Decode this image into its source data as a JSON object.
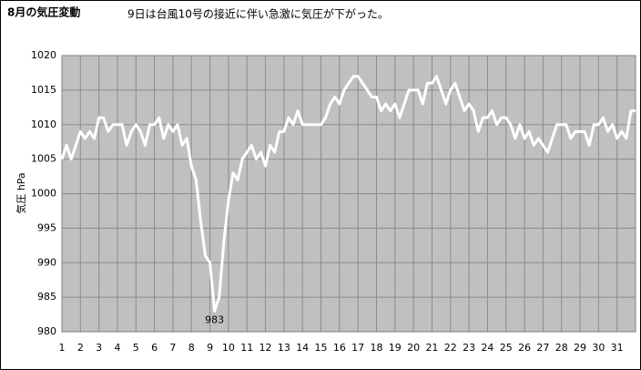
{
  "chart_data": {
    "type": "line",
    "title": "8月の気圧変動",
    "subtitle": "9日は台風10号の接近に伴い急激に気圧が下がった。",
    "y_label": "気圧 hPa",
    "annotation": "983",
    "x": [
      1,
      1.25,
      1.5,
      1.75,
      2,
      2.25,
      2.5,
      2.75,
      3,
      3.25,
      3.5,
      3.75,
      4,
      4.25,
      4.5,
      4.75,
      5,
      5.25,
      5.5,
      5.75,
      6,
      6.25,
      6.5,
      6.75,
      7,
      7.25,
      7.5,
      7.75,
      8,
      8.25,
      8.5,
      8.75,
      9,
      9.25,
      9.5,
      9.75,
      10,
      10.25,
      10.5,
      10.75,
      11,
      11.25,
      11.5,
      11.75,
      12,
      12.25,
      12.5,
      12.75,
      13,
      13.25,
      13.5,
      13.75,
      14,
      14.25,
      14.5,
      14.75,
      15,
      15.25,
      15.5,
      15.75,
      16,
      16.25,
      16.5,
      16.75,
      17,
      17.25,
      17.5,
      17.75,
      18,
      18.25,
      18.5,
      18.75,
      19,
      19.25,
      19.5,
      19.75,
      20,
      20.25,
      20.5,
      20.75,
      21,
      21.25,
      21.5,
      21.75,
      22,
      22.25,
      22.5,
      22.75,
      23,
      23.25,
      23.5,
      23.75,
      24,
      24.25,
      24.5,
      24.75,
      25,
      25.25,
      25.5,
      25.75,
      26,
      26.25,
      26.5,
      26.75,
      27,
      27.25,
      27.5,
      27.75,
      28,
      28.25,
      28.5,
      28.75,
      29,
      29.25,
      29.5,
      29.75,
      30,
      30.25,
      30.5,
      30.75,
      31,
      31.25,
      31.5,
      31.75,
      32
    ],
    "values": [
      1005,
      1007,
      1005,
      1007,
      1009,
      1008,
      1009,
      1008,
      1011,
      1011,
      1009,
      1010,
      1010,
      1010,
      1007,
      1009,
      1010,
      1009,
      1007,
      1010,
      1010,
      1011,
      1008,
      1010,
      1009,
      1010,
      1007,
      1008,
      1004,
      1002,
      996,
      991,
      990,
      983,
      985,
      993,
      999,
      1003,
      1002,
      1005,
      1006,
      1007,
      1005,
      1006,
      1004,
      1007,
      1006,
      1009,
      1009,
      1011,
      1010,
      1012,
      1010,
      1010,
      1010,
      1010,
      1010,
      1011,
      1013,
      1014,
      1013,
      1015,
      1016,
      1017,
      1017,
      1016,
      1015,
      1014,
      1014,
      1012,
      1013,
      1012,
      1013,
      1011,
      1013,
      1015,
      1015,
      1015,
      1013,
      1016,
      1016,
      1017,
      1015,
      1013,
      1015,
      1016,
      1014,
      1012,
      1013,
      1012,
      1009,
      1011,
      1011,
      1012,
      1010,
      1011,
      1011,
      1010,
      1008,
      1010,
      1008,
      1009,
      1007,
      1008,
      1007,
      1006,
      1008,
      1010,
      1010,
      1010,
      1008,
      1009,
      1009,
      1009,
      1007,
      1010,
      1010,
      1011,
      1009,
      1010,
      1008,
      1009,
      1008,
      1012,
      1012
    ],
    "color": "#ffffff",
    "xlim": [
      1,
      32
    ],
    "xticks": [
      1,
      2,
      3,
      4,
      5,
      6,
      7,
      8,
      9,
      10,
      11,
      12,
      13,
      14,
      15,
      16,
      17,
      18,
      19,
      20,
      21,
      22,
      23,
      24,
      25,
      26,
      27,
      28,
      29,
      30,
      31
    ],
    "ylim": [
      980,
      1020
    ],
    "yticks": [
      980,
      985,
      990,
      995,
      1000,
      1005,
      1010,
      1015,
      1020
    ],
    "grid": true
  }
}
